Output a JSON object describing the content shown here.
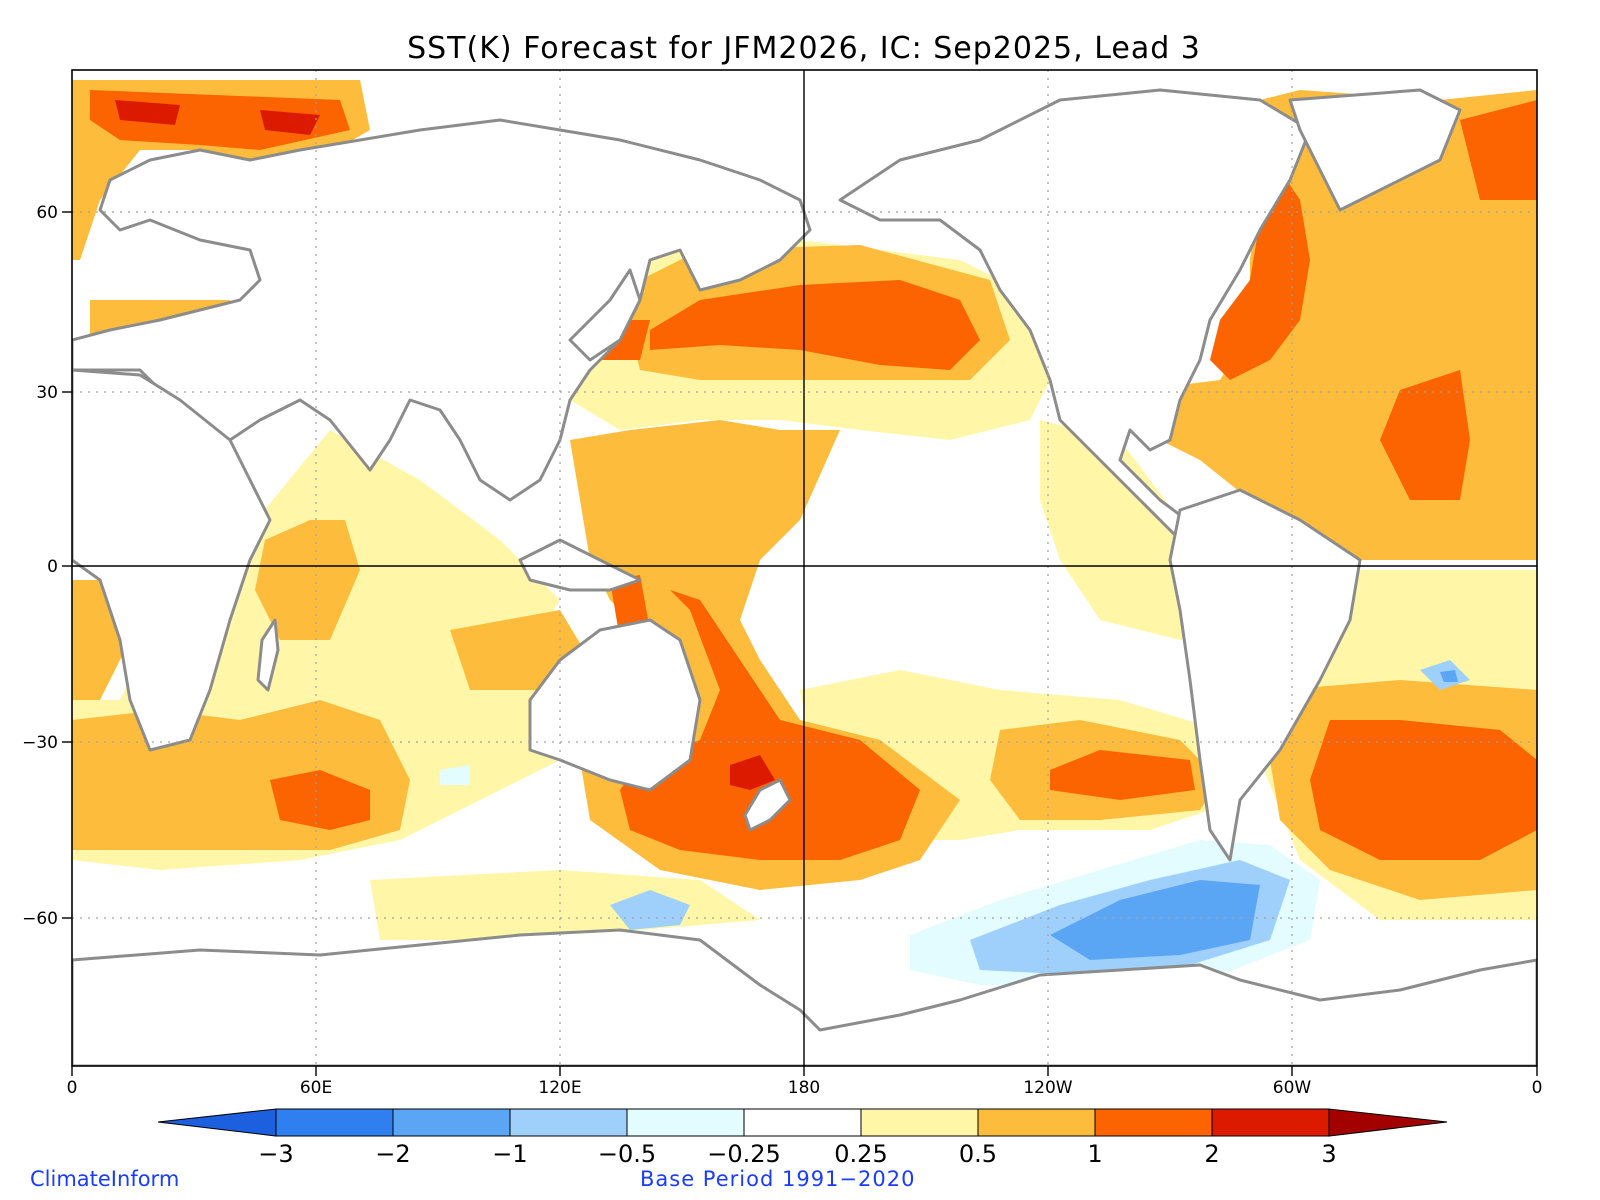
{
  "title": "SST(K) Forecast for JFM2026, IC: Sep2025, Lead 3",
  "map": {
    "x_ticks": [
      "0",
      "60E",
      "120E",
      "180",
      "120W",
      "60W",
      "0"
    ],
    "y_ticks": [
      "60",
      "30",
      "0",
      "−30",
      "−60"
    ]
  },
  "colorbar": {
    "levels": [
      "−3",
      "−2",
      "−1",
      "−0.5",
      "−0.25",
      "0.25",
      "0.5",
      "1",
      "2",
      "3"
    ],
    "colors": [
      "#1c60e0",
      "#2f7ff0",
      "#5aa6f5",
      "#9fd0fb",
      "#e2fcff",
      "#ffffff",
      "#fff6a8",
      "#fdbc3c",
      "#fb6400",
      "#dc1a00",
      "#a30000"
    ]
  },
  "credits": {
    "left": "ClimateInform",
    "center": "Base Period 1991−2020"
  }
}
